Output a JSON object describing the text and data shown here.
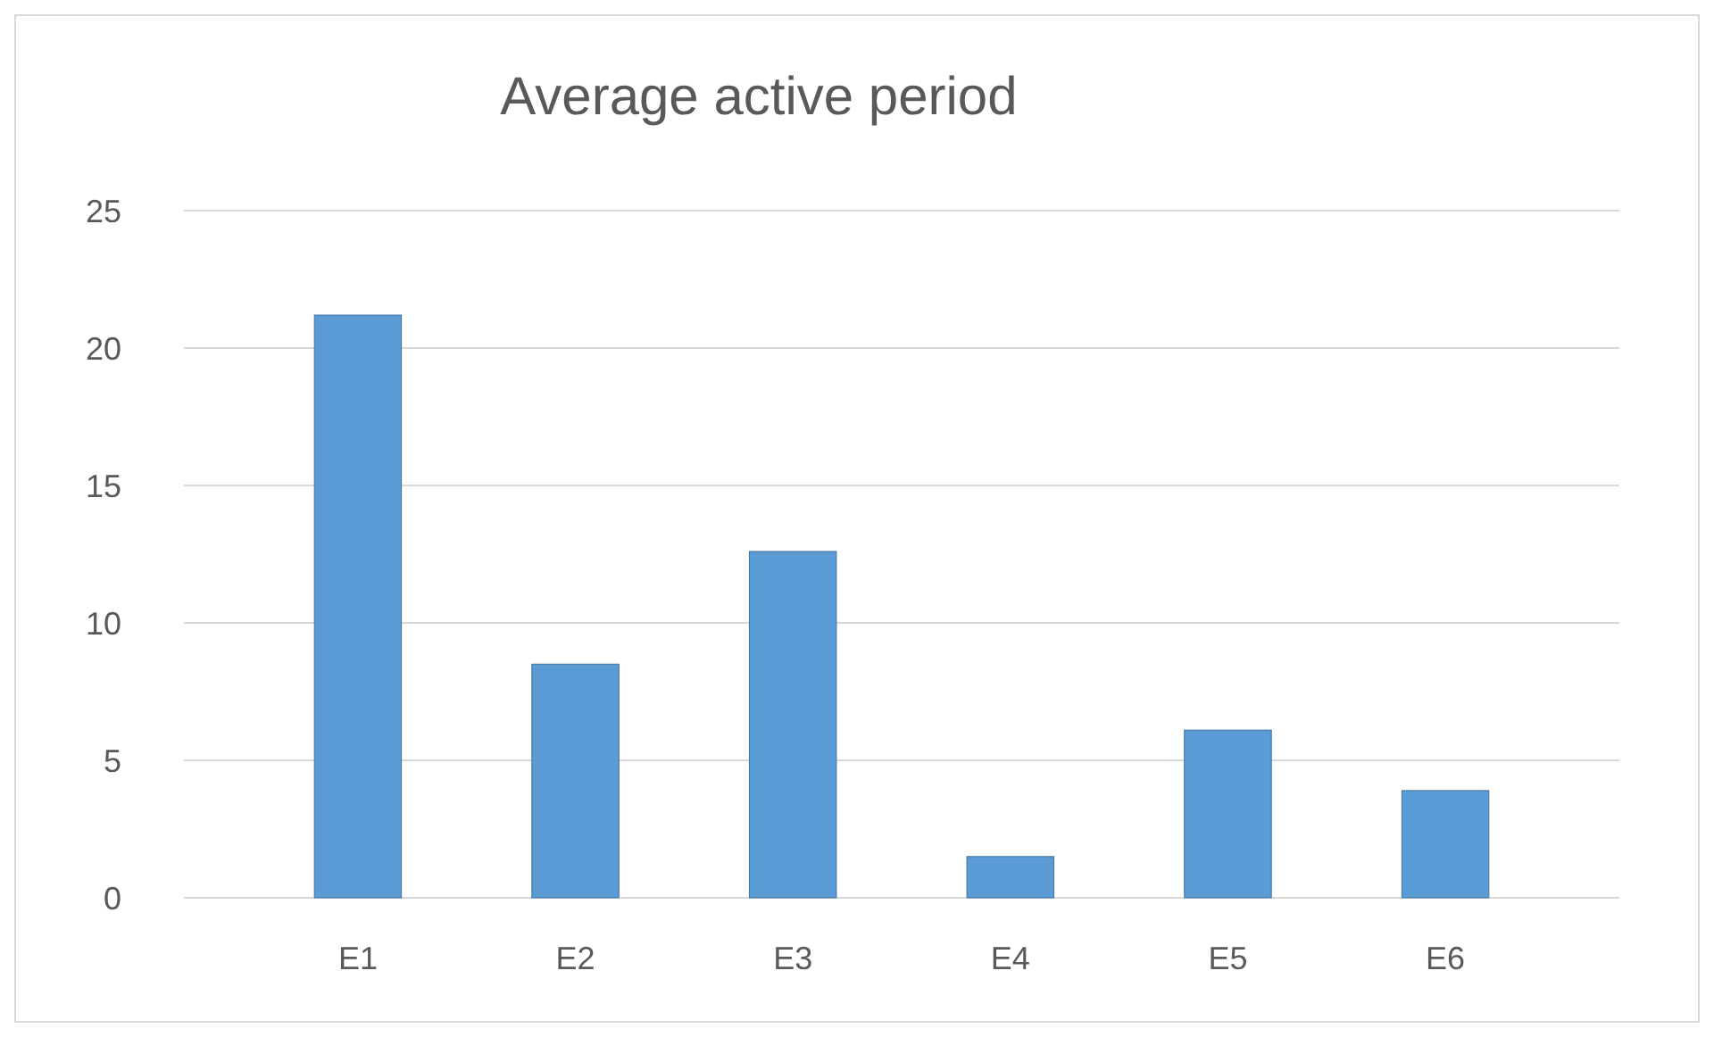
{
  "chart_data": {
    "type": "bar",
    "title": "Average active period",
    "categories": [
      "E1",
      "E2",
      "E3",
      "E4",
      "E5",
      "E6"
    ],
    "values": [
      21.2,
      8.5,
      12.6,
      1.5,
      6.1,
      3.9
    ],
    "color": "#5b9bd5",
    "ylim": [
      0,
      25
    ],
    "yticks": [
      0,
      5,
      10,
      15,
      20,
      25
    ],
    "grid": true
  }
}
